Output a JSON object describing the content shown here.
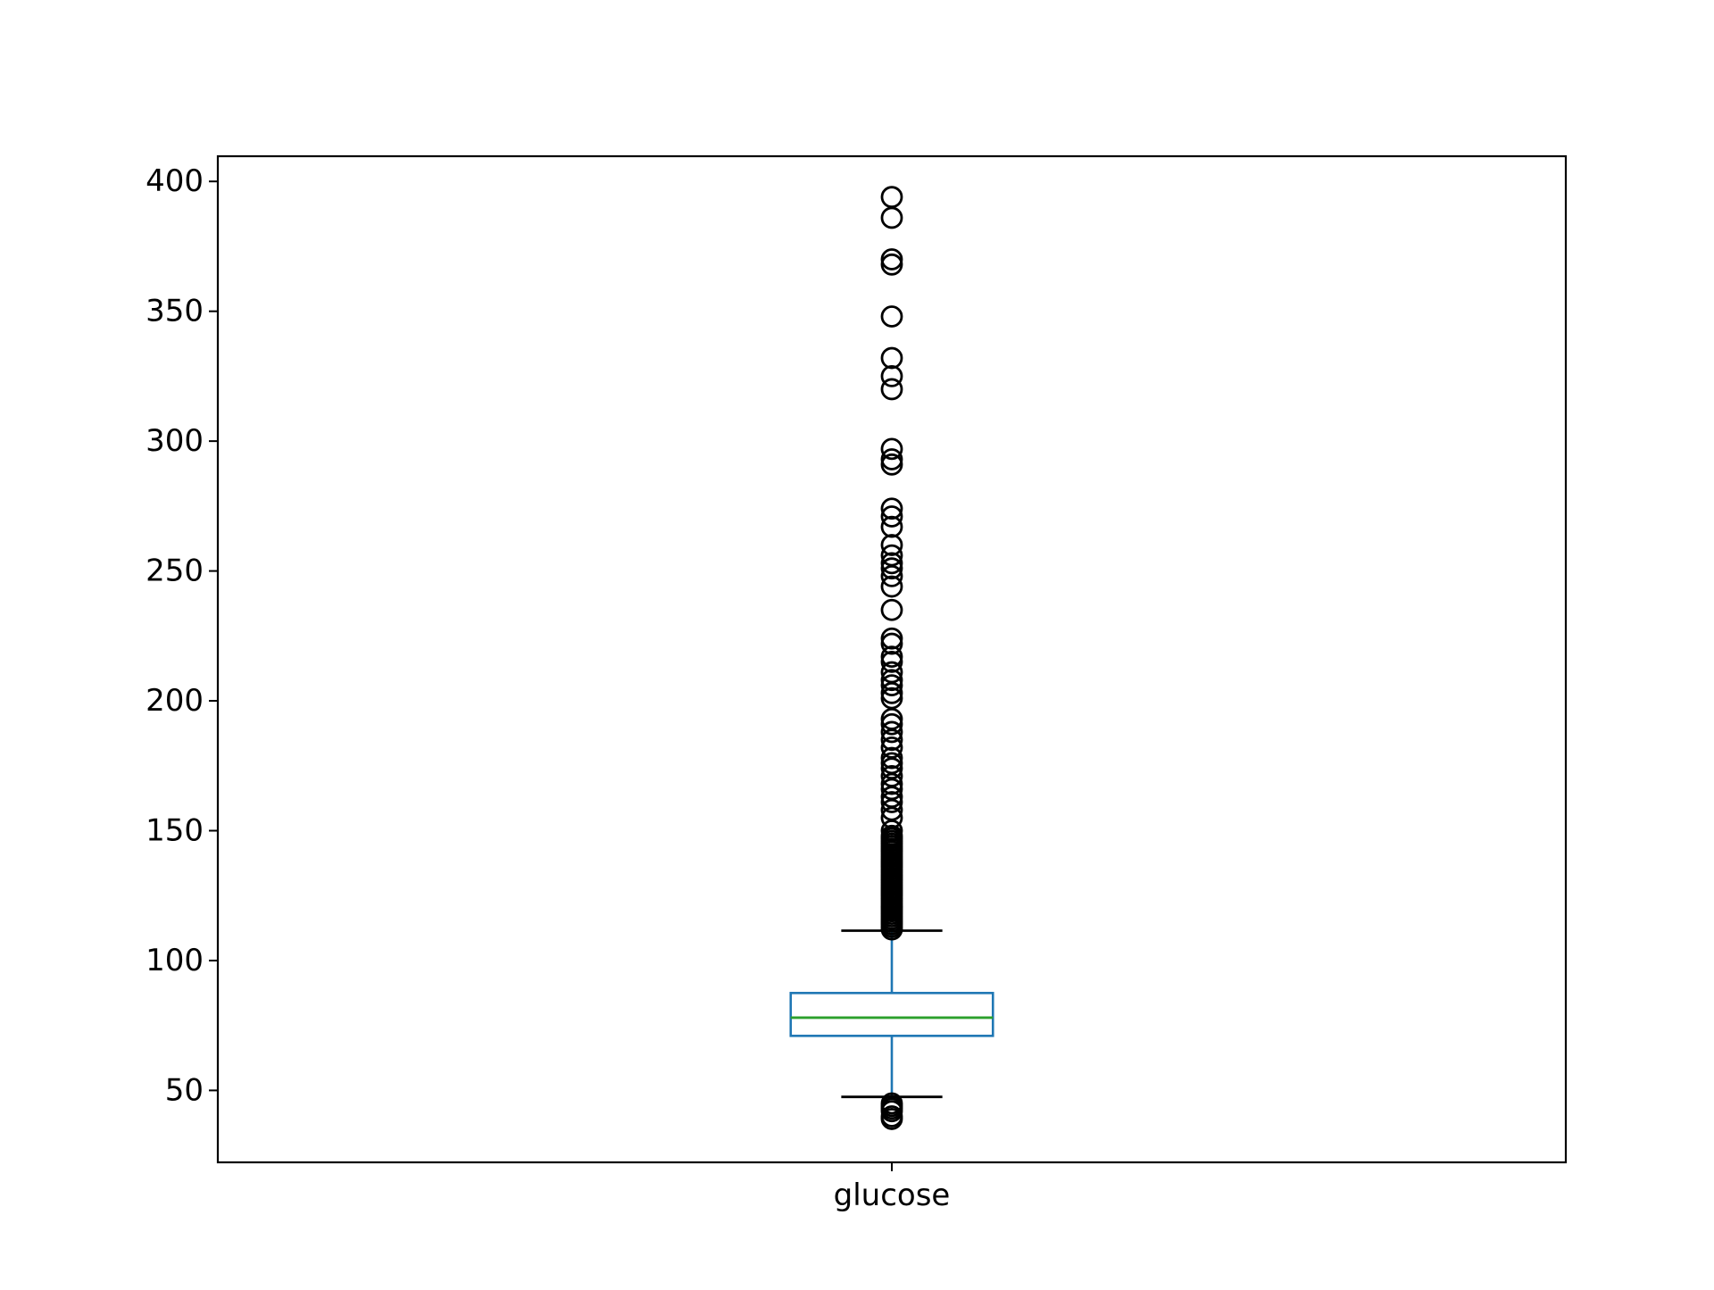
{
  "chart_data": {
    "type": "box",
    "title": "",
    "xlabel": "",
    "ylabel": "",
    "categories": [
      "glucose"
    ],
    "ylim": [
      22.3,
      409.7
    ],
    "y_ticks": [
      50,
      100,
      150,
      200,
      250,
      300,
      350,
      400
    ],
    "grid": false,
    "legend": "none",
    "series": [
      {
        "category": "glucose",
        "whisker_low": 47.5,
        "q1": 71.0,
        "median": 78.0,
        "q3": 87.5,
        "whisker_high": 111.5,
        "outliers_high": [
          112,
          113,
          114,
          115,
          116,
          117,
          118,
          119,
          120,
          121,
          122,
          123,
          124,
          125,
          126,
          127,
          128,
          129,
          130,
          131,
          132,
          133,
          134,
          135,
          136,
          137,
          138,
          139,
          140,
          141,
          142,
          143,
          144,
          145,
          146,
          147,
          148,
          150,
          155,
          158,
          161,
          163,
          166,
          168,
          171,
          174,
          176,
          178,
          182,
          185,
          188,
          191,
          193,
          201,
          203,
          206,
          208,
          211,
          215,
          217,
          222,
          224,
          235,
          244,
          248,
          251,
          253,
          256,
          260,
          267,
          271,
          274,
          291,
          293,
          297,
          320,
          325,
          332,
          348,
          368,
          370,
          386,
          394
        ],
        "outliers_low": [
          39,
          40,
          42,
          43,
          44,
          45
        ]
      }
    ],
    "colors": {
      "box": "#1f77b4",
      "median": "#2ca02c",
      "whisker_cap": "#000000",
      "flier": "#000000",
      "axes": "#000000"
    }
  }
}
